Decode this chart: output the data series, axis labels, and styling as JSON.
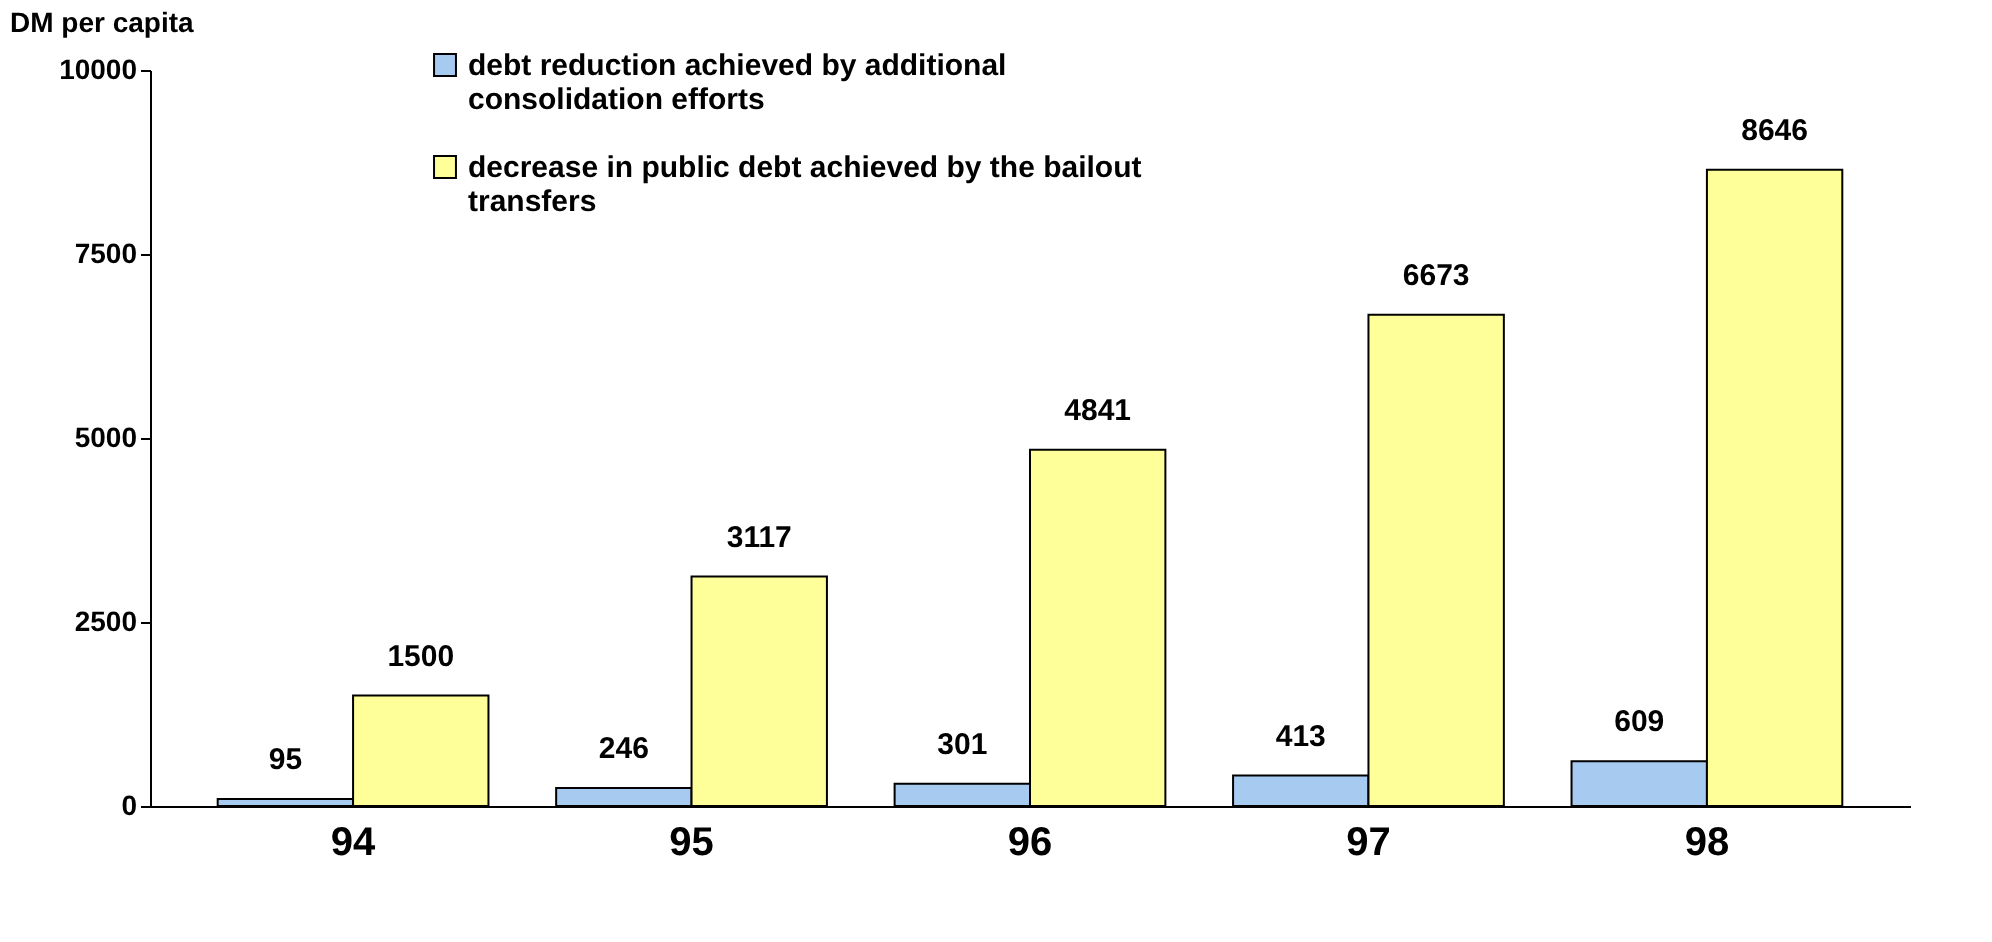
{
  "chart_data": {
    "type": "bar",
    "ylabel": "DM per capita",
    "categories": [
      "94",
      "95",
      "96",
      "97",
      "98"
    ],
    "series": [
      {
        "name": "debt reduction achieved by additional consolidation efforts",
        "color": "#a6caf0",
        "values": [
          95,
          246,
          301,
          413,
          609
        ]
      },
      {
        "name": "decrease in public debt achieved by the bailout transfers",
        "color": "#ffff99",
        "values": [
          1500,
          3117,
          4841,
          6673,
          8646
        ]
      }
    ],
    "ylim": [
      0,
      10000
    ],
    "yticks": [
      0,
      2500,
      5000,
      7500,
      10000
    ],
    "grid": false,
    "legend": "top left",
    "data_labels": true
  }
}
